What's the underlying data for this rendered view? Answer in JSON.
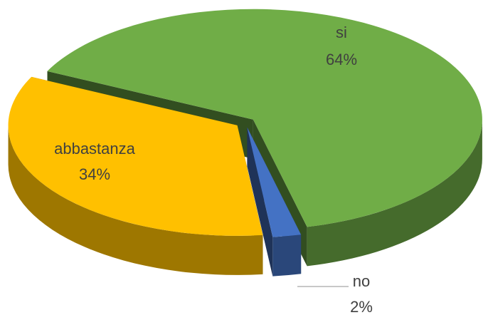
{
  "chart_data": {
    "type": "pie3d",
    "categories": [
      "si",
      "no",
      "abbastanza"
    ],
    "values": [
      64,
      2,
      34
    ],
    "value_labels": [
      "64%",
      "2%",
      "34%"
    ],
    "colors": [
      "#70ad47",
      "#4472c4",
      "#ffc000"
    ],
    "exploded": true
  }
}
